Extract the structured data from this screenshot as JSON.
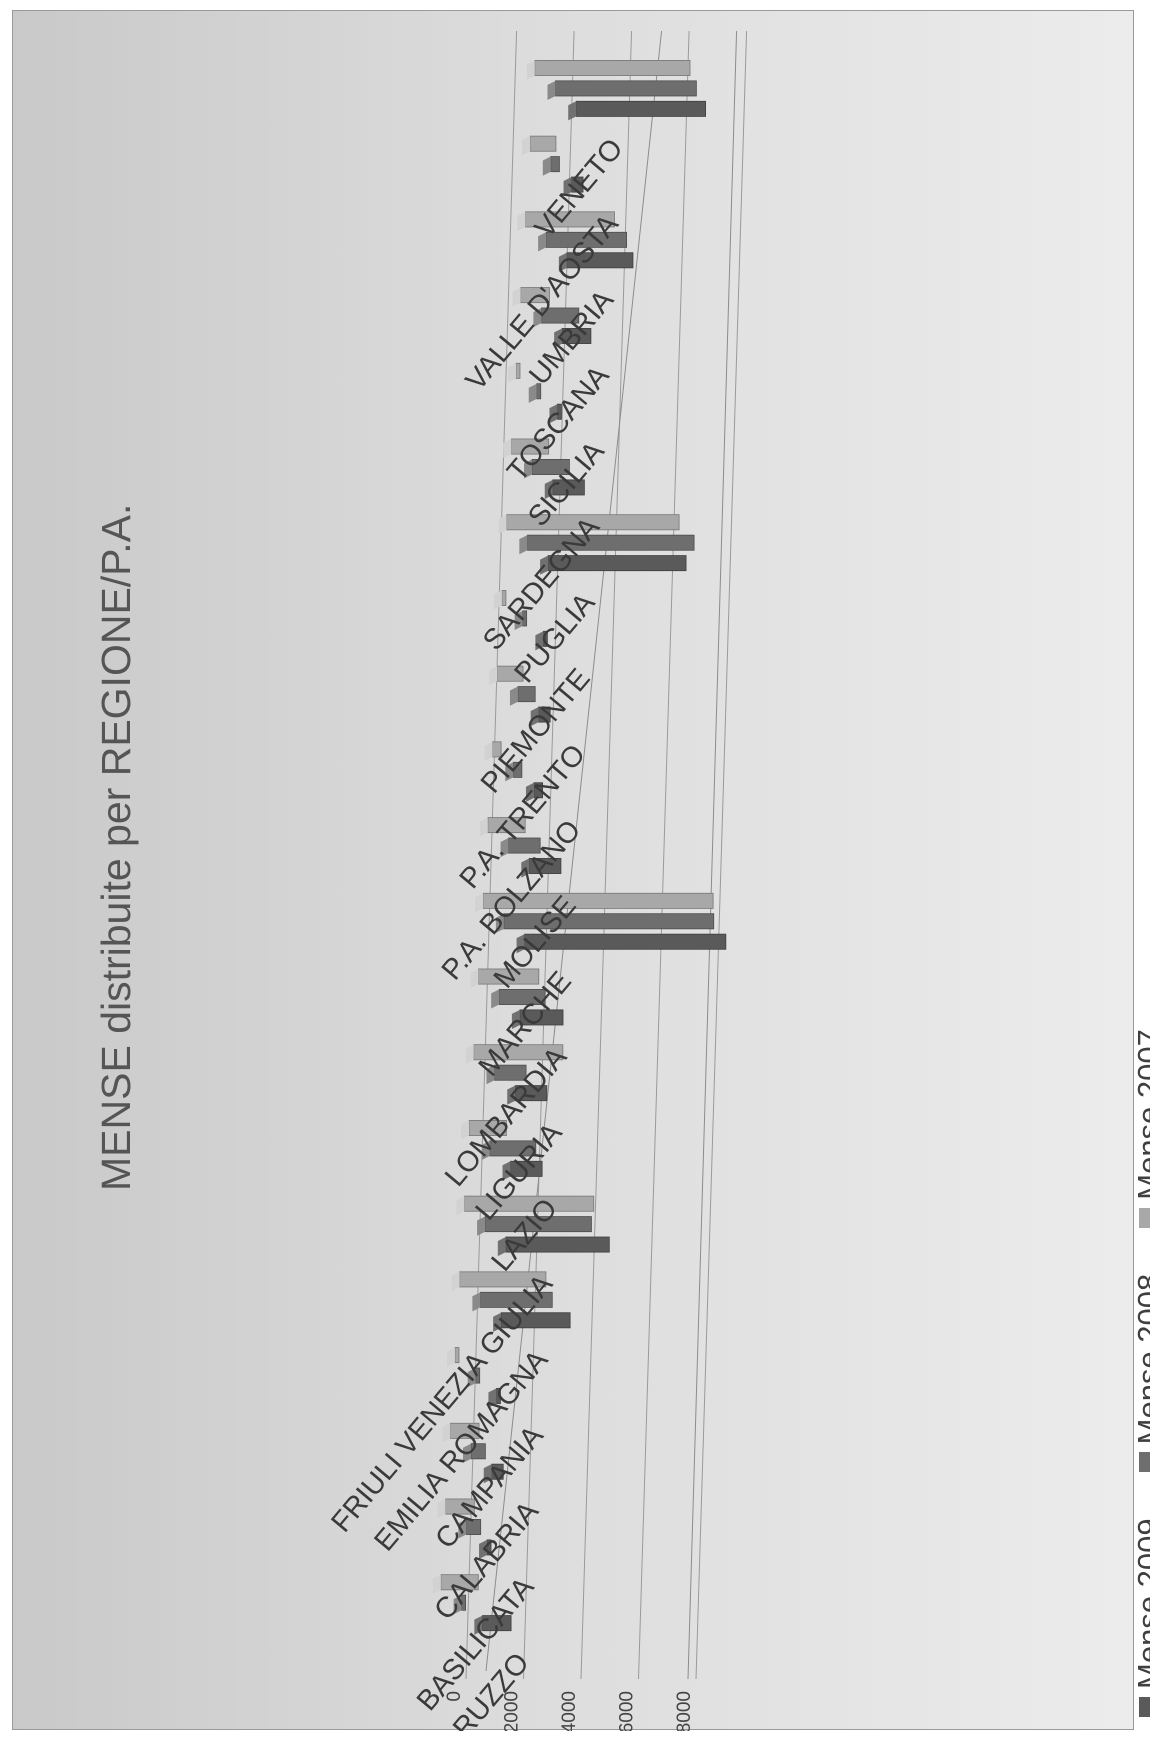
{
  "chart_data": {
    "type": "bar",
    "title": "MENSE distribuite per REGIONE/P.A.",
    "xlabel": "",
    "ylabel": "",
    "ylim": [
      0,
      8000
    ],
    "yticks": [
      0,
      2000,
      4000,
      6000,
      8000
    ],
    "grid": true,
    "legend_position": "bottom",
    "categories": [
      "ABRUZZO",
      "BASILICATA",
      "CALABRIA",
      "CAMPANIA",
      "EMILIA ROMAGNA",
      "FRIULI VENEZIA GIULIA",
      "LAZIO",
      "LIGURIA",
      "LOMBARDIA",
      "MARCHE",
      "MOLISE",
      "P.A. BOLZANO",
      "P.A. TRENTO",
      "PIEMONTE",
      "PUGLIA",
      "SARDEGNA",
      "SICILIA",
      "TOSCANA",
      "UMBRIA",
      "VALLE D'AOSTA",
      "VENETO"
    ],
    "series": [
      {
        "name": "Mense 2009",
        "color": "#5a5a5a",
        "values": [
          1000,
          100,
          400,
          100,
          2400,
          3600,
          1100,
          1100,
          1500,
          7000,
          1100,
          300,
          400,
          100,
          4800,
          1100,
          50,
          1000,
          2300,
          400,
          4500
        ]
      },
      {
        "name": "Mense 2008",
        "color": "#6e6e6e",
        "values": [
          100,
          500,
          500,
          100,
          2500,
          3700,
          1600,
          1100,
          1600,
          7300,
          1100,
          300,
          600,
          100,
          5800,
          1300,
          50,
          1300,
          2800,
          300,
          4900
        ]
      },
      {
        "name": "Mense 2007",
        "color": "#a8a8a8",
        "values": [
          1300,
          1000,
          1000,
          100,
          3000,
          4500,
          1300,
          3100,
          2100,
          8000,
          1300,
          300,
          900,
          100,
          6000,
          1300,
          100,
          1000,
          3100,
          900,
          5400
        ]
      }
    ]
  }
}
